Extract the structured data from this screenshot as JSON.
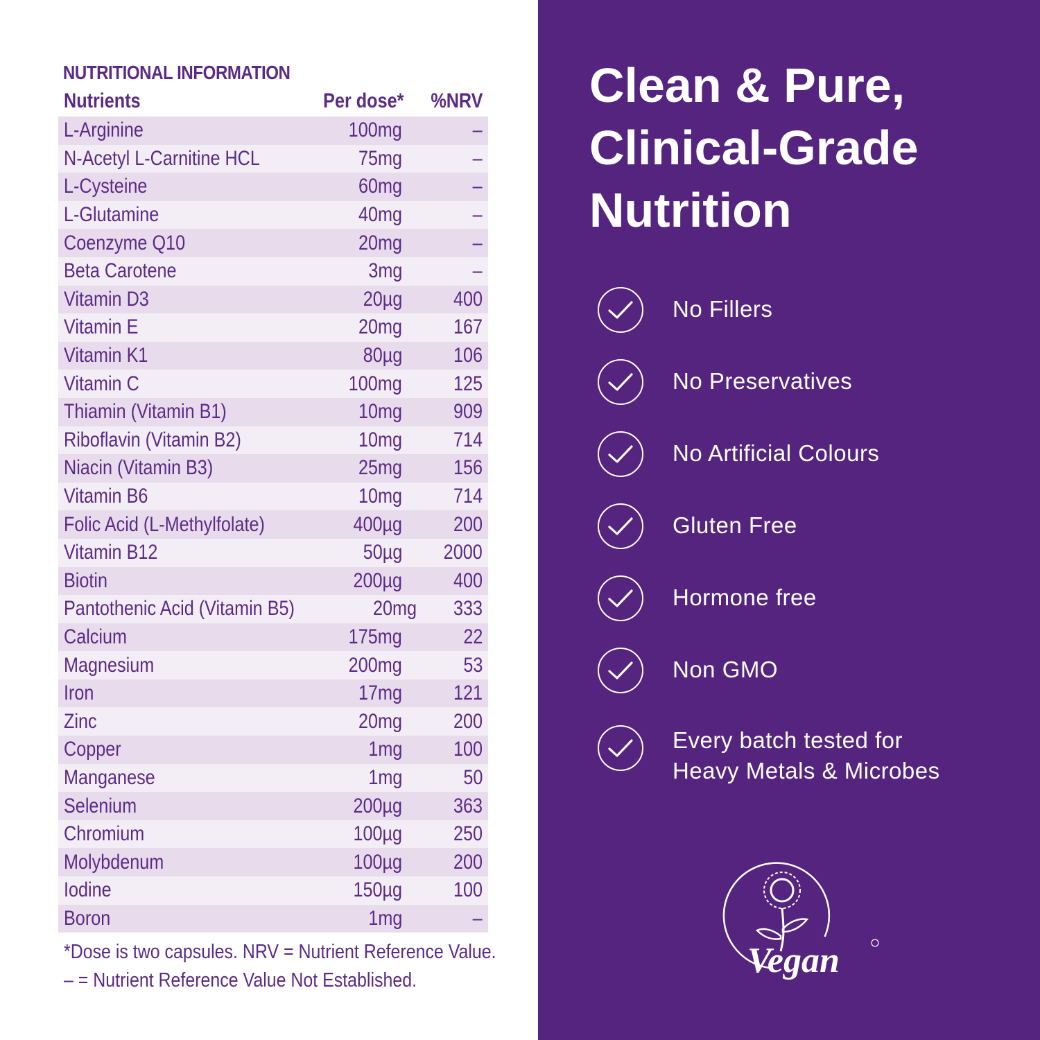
{
  "nutrition": {
    "title": "NUTRITIONAL INFORMATION",
    "headers": {
      "nutrient": "Nutrients",
      "dose": "Per dose*",
      "nrv": "%NRV"
    },
    "rows": [
      {
        "name": "L-Arginine",
        "dose": "100mg",
        "nrv": "–"
      },
      {
        "name": "N-Acetyl L-Carnitine HCL",
        "dose": "75mg",
        "nrv": "–"
      },
      {
        "name": "L-Cysteine",
        "dose": "60mg",
        "nrv": "–"
      },
      {
        "name": "L-Glutamine",
        "dose": "40mg",
        "nrv": "–"
      },
      {
        "name": "Coenzyme Q10",
        "dose": "20mg",
        "nrv": "–"
      },
      {
        "name": "Beta Carotene",
        "dose": "3mg",
        "nrv": "–"
      },
      {
        "name": "Vitamin D3",
        "dose": "20µg",
        "nrv": "400"
      },
      {
        "name": "Vitamin E",
        "dose": "20mg",
        "nrv": "167"
      },
      {
        "name": "Vitamin K1",
        "dose": "80µg",
        "nrv": "106"
      },
      {
        "name": "Vitamin C",
        "dose": "100mg",
        "nrv": "125"
      },
      {
        "name": "Thiamin (Vitamin B1)",
        "dose": "10mg",
        "nrv": "909"
      },
      {
        "name": "Riboflavin (Vitamin B2)",
        "dose": "10mg",
        "nrv": "714"
      },
      {
        "name": "Niacin (Vitamin B3)",
        "dose": "25mg",
        "nrv": "156"
      },
      {
        "name": "Vitamin B6",
        "dose": "10mg",
        "nrv": "714"
      },
      {
        "name": "Folic Acid (L-Methylfolate)",
        "dose": "400µg",
        "nrv": "200"
      },
      {
        "name": "Vitamin B12",
        "dose": "50µg",
        "nrv": "2000"
      },
      {
        "name": "Biotin",
        "dose": "200µg",
        "nrv": "400"
      },
      {
        "name": "Pantothenic Acid (Vitamin B5)",
        "dose": "20mg",
        "nrv": "333"
      },
      {
        "name": "Calcium",
        "dose": "175mg",
        "nrv": "22"
      },
      {
        "name": "Magnesium",
        "dose": "200mg",
        "nrv": "53"
      },
      {
        "name": "Iron",
        "dose": "17mg",
        "nrv": "121"
      },
      {
        "name": "Zinc",
        "dose": "20mg",
        "nrv": "200"
      },
      {
        "name": "Copper",
        "dose": "1mg",
        "nrv": "100"
      },
      {
        "name": "Manganese",
        "dose": "1mg",
        "nrv": "50"
      },
      {
        "name": "Selenium",
        "dose": "200µg",
        "nrv": "363"
      },
      {
        "name": "Chromium",
        "dose": "100µg",
        "nrv": "250"
      },
      {
        "name": "Molybdenum",
        "dose": "100µg",
        "nrv": "200"
      },
      {
        "name": "Iodine",
        "dose": "150µg",
        "nrv": "100"
      },
      {
        "name": "Boron",
        "dose": "1mg",
        "nrv": "–"
      }
    ],
    "footnote_1": "*Dose is two capsules. NRV = Nutrient Reference Value.",
    "footnote_2": "– = Nutrient Reference Value Not Established."
  },
  "headline": {
    "line1": "Clean & Pure,",
    "line2": "Clinical-Grade",
    "line3": "Nutrition"
  },
  "features": [
    {
      "icon": "check-circle-icon",
      "label": "No Fillers"
    },
    {
      "icon": "check-circle-icon",
      "label": "No Preservatives"
    },
    {
      "icon": "check-circle-icon",
      "label": "No Artificial Colours"
    },
    {
      "icon": "check-circle-icon",
      "label": "Gluten Free"
    },
    {
      "icon": "check-circle-icon",
      "label": "Hormone free"
    },
    {
      "icon": "check-circle-icon",
      "label": "Non GMO"
    },
    {
      "icon": "check-circle-icon",
      "label": "Every batch tested for Heavy Metals & Microbes",
      "line1": "Every batch tested for",
      "line2": "Heavy Metals & Microbes"
    }
  ],
  "vegan_logo": {
    "icon": "vegan-sunflower-logo",
    "text": "Vegan"
  },
  "colors": {
    "purple_panel": "#55247e",
    "text_purple": "#5b2a86",
    "row_dark": "#e8dcec",
    "row_light": "#f3edf5"
  }
}
